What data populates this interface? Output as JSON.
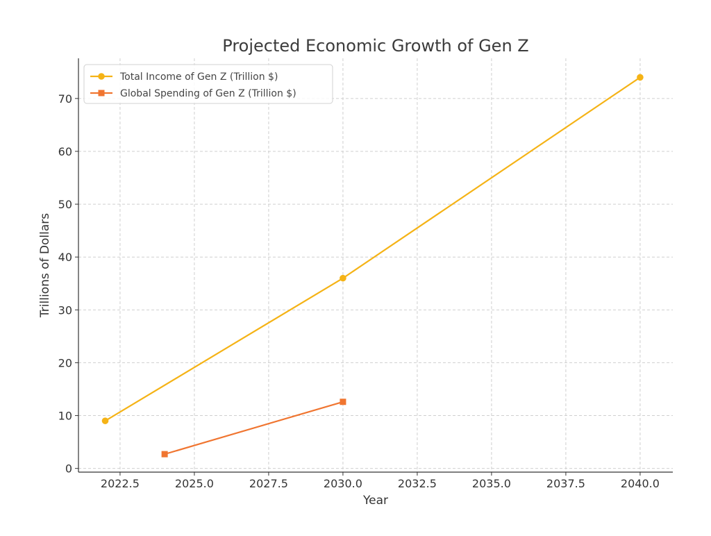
{
  "chart_data": {
    "type": "line",
    "title": "Projected Economic Growth of Gen Z",
    "xlabel": "Year",
    "ylabel": "Trillions of Dollars",
    "xlim": [
      2021.1,
      2041.1
    ],
    "ylim": [
      -0.7,
      77.6
    ],
    "x_ticks": [
      2022.5,
      2025.0,
      2027.5,
      2030.0,
      2032.5,
      2035.0,
      2037.5,
      2040.0
    ],
    "x_tick_labels": [
      "2022.5",
      "2025.0",
      "2027.5",
      "2030.0",
      "2032.5",
      "2035.0",
      "2037.5",
      "2040.0"
    ],
    "y_ticks": [
      0,
      10,
      20,
      30,
      40,
      50,
      60,
      70
    ],
    "y_tick_labels": [
      "0",
      "10",
      "20",
      "30",
      "40",
      "50",
      "60",
      "70"
    ],
    "grid": true,
    "legend_position": "top-left",
    "series": [
      {
        "name": "Total Income of Gen Z (Trillion $)",
        "marker": "circle",
        "color": "#f5b316",
        "x": [
          2022,
          2030,
          2040
        ],
        "y": [
          9,
          36,
          74
        ]
      },
      {
        "name": "Global Spending of Gen Z (Trillion $)",
        "marker": "square",
        "color": "#f07530",
        "x": [
          2024,
          2030
        ],
        "y": [
          2.7,
          12.6
        ]
      }
    ]
  }
}
